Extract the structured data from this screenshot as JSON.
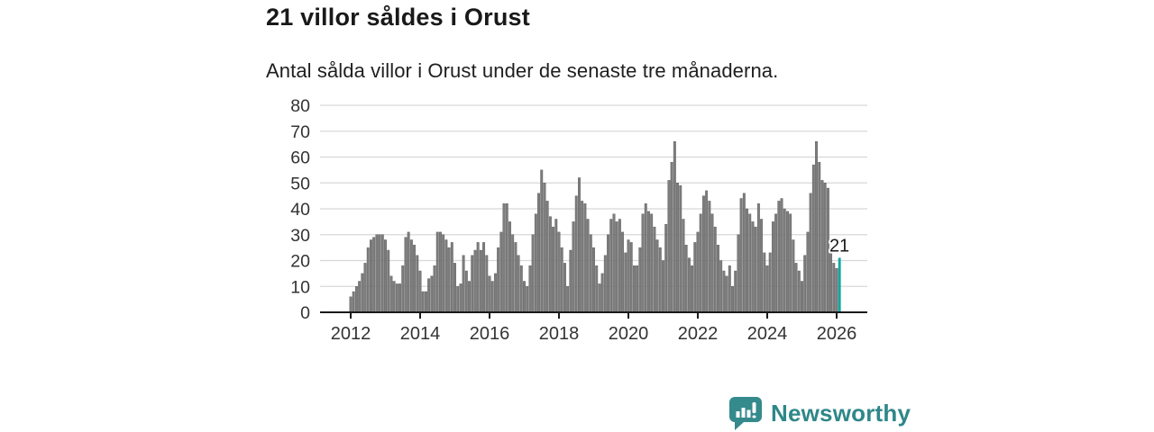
{
  "header": {
    "title": "21 villor såldes i Orust",
    "subtitle": "Antal sålda villor i Orust under de senaste tre månaderna."
  },
  "chart_data": {
    "type": "bar",
    "title": "21 villor såldes i Orust",
    "subtitle": "Antal sålda villor i Orust under de senaste tre månaderna.",
    "x_start": {
      "year": 2012,
      "month": 1
    },
    "x_interval": "monthly",
    "values": [
      6,
      8,
      10,
      12,
      15,
      19,
      25,
      28,
      29,
      30,
      30,
      30,
      28,
      24,
      14,
      12,
      11,
      11,
      18,
      29,
      31,
      28,
      26,
      22,
      16,
      8,
      8,
      13,
      14,
      18,
      31,
      31,
      30,
      28,
      25,
      27,
      19,
      10,
      11,
      22,
      16,
      12,
      22,
      24,
      27,
      24,
      27,
      22,
      14,
      12,
      15,
      25,
      31,
      42,
      42,
      35,
      30,
      27,
      22,
      18,
      12,
      10,
      18,
      30,
      38,
      46,
      55,
      50,
      43,
      37,
      33,
      36,
      31,
      25,
      19,
      10,
      24,
      35,
      45,
      52,
      43,
      42,
      36,
      30,
      25,
      18,
      11,
      15,
      22,
      30,
      36,
      38,
      35,
      36,
      31,
      23,
      28,
      27,
      18,
      18,
      25,
      38,
      42,
      39,
      38,
      33,
      28,
      25,
      20,
      34,
      51,
      58,
      66,
      50,
      49,
      36,
      26,
      21,
      18,
      27,
      31,
      38,
      45,
      47,
      43,
      38,
      33,
      26,
      20,
      16,
      14,
      18,
      10,
      16,
      30,
      44,
      46,
      40,
      38,
      35,
      33,
      42,
      36,
      23,
      18,
      23,
      35,
      38,
      43,
      44,
      40,
      39,
      38,
      28,
      19,
      16,
      12,
      22,
      31,
      46,
      57,
      66,
      58,
      51,
      50,
      48,
      24,
      19,
      17,
      21
    ],
    "highlight": {
      "index": 169,
      "value": 21,
      "annotation": "21"
    },
    "ylim": [
      0,
      80
    ],
    "yticks": [
      0,
      10,
      20,
      30,
      40,
      50,
      60,
      70,
      80
    ],
    "xticks": [
      2012,
      2014,
      2016,
      2018,
      2020,
      2022,
      2024,
      2026
    ],
    "grid": true,
    "legend": false,
    "colors": {
      "bar": "#7d7d7d",
      "bar_stroke": "#585858",
      "highlight_bar": "#12a7a0",
      "grid_line": "#d8d8d8",
      "axis_line": "#1a1a1a",
      "tick_label": "#333333",
      "annotation_text": "#1a1a1a"
    }
  },
  "branding": {
    "logo_text": "Newsworthy",
    "logo_text_color": "#2f8789",
    "badge_color": "#358a8c",
    "badge_glyph_color": "#ffffff"
  }
}
